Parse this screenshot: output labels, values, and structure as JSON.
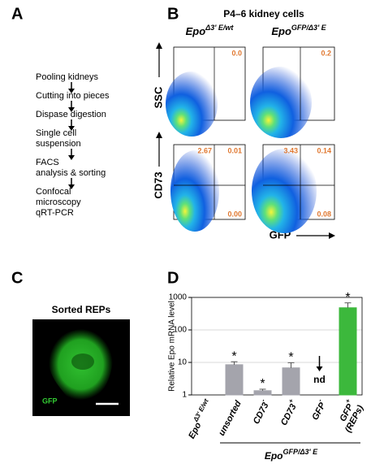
{
  "panel_a": {
    "label": "A",
    "steps": [
      [
        "Pooling kidneys"
      ],
      [
        "Cutting into pieces"
      ],
      [
        "Dispase digestion"
      ],
      [
        "Single cell",
        "suspension"
      ],
      [
        "FACS",
        "analysis & sorting"
      ],
      [
        "Confocal",
        "microscopy",
        "qRT-PCR"
      ]
    ]
  },
  "panel_b": {
    "label": "B",
    "title": "P4–6 kidney cells",
    "columns": [
      {
        "base": "Epo",
        "sup": "Δ3' E/wt"
      },
      {
        "base": "Epo",
        "sup": "GFP/Δ3' E"
      }
    ],
    "row_labels": [
      "SSC",
      "CD73"
    ],
    "x_label": "GFP",
    "top_row": [
      "0.0",
      "0.2"
    ],
    "bottom_row": [
      {
        "upper_left": "2.67",
        "upper_right": "0.01",
        "lower_right": "0.00"
      },
      {
        "upper_left": "3.43",
        "upper_right": "0.14",
        "lower_right": "0.08"
      }
    ]
  },
  "panel_c": {
    "label": "C",
    "title": "Sorted REPs",
    "channel": "GFP"
  },
  "panel_d": {
    "label": "D"
  },
  "chart_data": {
    "type": "bar",
    "y_label": "Relative Epo mRNA  level",
    "log_y": true,
    "ylim": [
      1,
      1000
    ],
    "yticks": [
      1,
      10,
      100,
      1000
    ],
    "categories": [
      "Epo",
      "unsorted",
      "CD73",
      "CD73",
      "GFP",
      "GFP"
    ],
    "category_superscripts": [
      "Δ3' E/wt",
      null,
      "-",
      "+",
      "-",
      "+"
    ],
    "category_notes": [
      null,
      null,
      null,
      null,
      null,
      "(REPs)"
    ],
    "values": [
      1,
      8.5,
      1.35,
      6.8,
      null,
      480
    ],
    "errors": [
      0,
      2,
      0.15,
      3,
      null,
      200
    ],
    "colors": [
      "#a4a4ac",
      "#a4a4ac",
      "#a4a4ac",
      "#a4a4ac",
      "#a4a4ac",
      "#3cb83c"
    ],
    "markers": [
      null,
      "*",
      "*",
      "*",
      null,
      "*"
    ],
    "value_notes": [
      null,
      null,
      null,
      null,
      "nd",
      null
    ],
    "group_label": {
      "base": "Epo",
      "sup": "GFP/Δ3' E"
    }
  }
}
